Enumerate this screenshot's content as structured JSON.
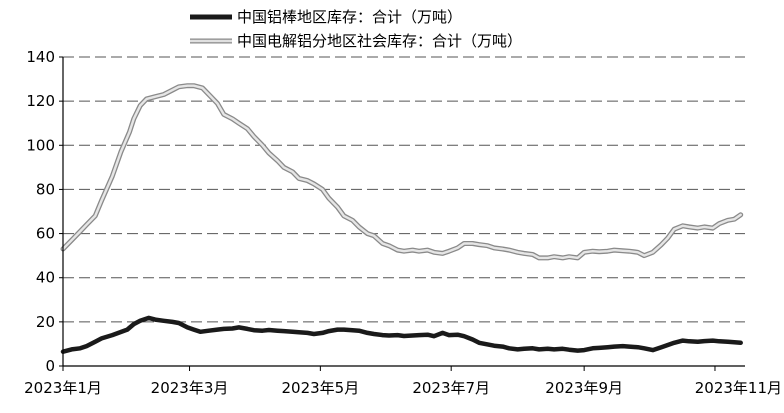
{
  "chart_data": {
    "type": "line",
    "title": "",
    "xlabel": "",
    "ylabel": "",
    "ylim": [
      0,
      140
    ],
    "yticks": [
      0,
      20,
      40,
      60,
      80,
      100,
      120,
      140
    ],
    "xlim": [
      "2023-01-01",
      "2023-11-15"
    ],
    "xticks": [
      {
        "date": "2023-01-01",
        "label": "2023年1月"
      },
      {
        "date": "2023-03-01",
        "label": "2023年3月"
      },
      {
        "date": "2023-05-01",
        "label": "2023年5月"
      },
      {
        "date": "2023-07-01",
        "label": "2023年7月"
      },
      {
        "date": "2023-09-01",
        "label": "2023年9月"
      },
      {
        "date": "2023-11-01",
        "label": "2023年11月"
      }
    ],
    "grid": "horizontal-dashed",
    "legend_position": "top-center",
    "series": [
      {
        "name": "中国铝棒地区库存：合计（万吨）",
        "color": "#1a1a1a",
        "style": "solid",
        "points": [
          [
            "2023-01-01",
            6.5
          ],
          [
            "2023-01-05",
            7.5
          ],
          [
            "2023-01-09",
            8.0
          ],
          [
            "2023-01-12",
            9.0
          ],
          [
            "2023-01-16",
            11.0
          ],
          [
            "2023-01-19",
            12.5
          ],
          [
            "2023-01-24",
            14.0
          ],
          [
            "2023-01-31",
            16.5
          ],
          [
            "2023-02-03",
            19.0
          ],
          [
            "2023-02-06",
            20.5
          ],
          [
            "2023-02-10",
            21.8
          ],
          [
            "2023-02-13",
            21.0
          ],
          [
            "2023-02-17",
            20.5
          ],
          [
            "2023-02-21",
            20.0
          ],
          [
            "2023-02-24",
            19.5
          ],
          [
            "2023-02-28",
            17.5
          ],
          [
            "2023-03-03",
            16.5
          ],
          [
            "2023-03-06",
            15.5
          ],
          [
            "2023-03-10",
            16.0
          ],
          [
            "2023-03-14",
            16.5
          ],
          [
            "2023-03-17",
            16.8
          ],
          [
            "2023-03-21",
            17.0
          ],
          [
            "2023-03-24",
            17.5
          ],
          [
            "2023-03-28",
            16.8
          ],
          [
            "2023-03-31",
            16.2
          ],
          [
            "2023-04-04",
            16.0
          ],
          [
            "2023-04-07",
            16.3
          ],
          [
            "2023-04-11",
            16.0
          ],
          [
            "2023-04-14",
            15.8
          ],
          [
            "2023-04-18",
            15.5
          ],
          [
            "2023-04-21",
            15.3
          ],
          [
            "2023-04-25",
            15.0
          ],
          [
            "2023-04-28",
            14.5
          ],
          [
            "2023-05-02",
            15.0
          ],
          [
            "2023-05-05",
            15.8
          ],
          [
            "2023-05-09",
            16.5
          ],
          [
            "2023-05-12",
            16.5
          ],
          [
            "2023-05-16",
            16.2
          ],
          [
            "2023-05-19",
            16.0
          ],
          [
            "2023-05-23",
            15.0
          ],
          [
            "2023-05-26",
            14.5
          ],
          [
            "2023-05-30",
            14.0
          ],
          [
            "2023-06-02",
            13.8
          ],
          [
            "2023-06-06",
            14.0
          ],
          [
            "2023-06-09",
            13.6
          ],
          [
            "2023-06-13",
            13.8
          ],
          [
            "2023-06-16",
            14.0
          ],
          [
            "2023-06-20",
            14.2
          ],
          [
            "2023-06-23",
            13.5
          ],
          [
            "2023-06-27",
            15.0
          ],
          [
            "2023-06-30",
            14.0
          ],
          [
            "2023-07-04",
            14.2
          ],
          [
            "2023-07-07",
            13.5
          ],
          [
            "2023-07-11",
            12.0
          ],
          [
            "2023-07-14",
            10.5
          ],
          [
            "2023-07-18",
            9.8
          ],
          [
            "2023-07-21",
            9.2
          ],
          [
            "2023-07-25",
            8.8
          ],
          [
            "2023-07-28",
            8.0
          ],
          [
            "2023-08-01",
            7.5
          ],
          [
            "2023-08-04",
            7.8
          ],
          [
            "2023-08-08",
            8.0
          ],
          [
            "2023-08-11",
            7.5
          ],
          [
            "2023-08-15",
            7.8
          ],
          [
            "2023-08-18",
            7.5
          ],
          [
            "2023-08-22",
            7.8
          ],
          [
            "2023-08-25",
            7.4
          ],
          [
            "2023-08-29",
            7.0
          ],
          [
            "2023-09-01",
            7.2
          ],
          [
            "2023-09-05",
            8.0
          ],
          [
            "2023-09-08",
            8.2
          ],
          [
            "2023-09-12",
            8.5
          ],
          [
            "2023-09-15",
            8.8
          ],
          [
            "2023-09-19",
            9.0
          ],
          [
            "2023-09-22",
            8.8
          ],
          [
            "2023-09-26",
            8.5
          ],
          [
            "2023-09-29",
            8.0
          ],
          [
            "2023-10-03",
            7.2
          ],
          [
            "2023-10-07",
            8.5
          ],
          [
            "2023-10-10",
            9.5
          ],
          [
            "2023-10-13",
            10.5
          ],
          [
            "2023-10-17",
            11.5
          ],
          [
            "2023-10-20",
            11.2
          ],
          [
            "2023-10-24",
            11.0
          ],
          [
            "2023-10-27",
            11.3
          ],
          [
            "2023-10-31",
            11.5
          ],
          [
            "2023-11-03",
            11.2
          ],
          [
            "2023-11-07",
            11.0
          ],
          [
            "2023-11-10",
            10.8
          ],
          [
            "2023-11-13",
            10.5
          ]
        ]
      },
      {
        "name": "中国电解铝分地区社会库存：合计（万吨）",
        "color": "#c0c0c0",
        "style": "double",
        "points": [
          [
            "2023-01-01",
            53.0
          ],
          [
            "2023-01-05",
            57.0
          ],
          [
            "2023-01-09",
            61.0
          ],
          [
            "2023-01-12",
            64.0
          ],
          [
            "2023-01-16",
            68.0
          ],
          [
            "2023-01-19",
            75.0
          ],
          [
            "2023-01-24",
            86.0
          ],
          [
            "2023-01-28",
            97.0
          ],
          [
            "2023-02-01",
            106.0
          ],
          [
            "2023-02-03",
            112.0
          ],
          [
            "2023-02-06",
            118.0
          ],
          [
            "2023-02-09",
            121.0
          ],
          [
            "2023-02-13",
            122.0
          ],
          [
            "2023-02-17",
            123.0
          ],
          [
            "2023-02-21",
            125.0
          ],
          [
            "2023-02-24",
            126.5
          ],
          [
            "2023-02-28",
            127.0
          ],
          [
            "2023-03-03",
            127.0
          ],
          [
            "2023-03-07",
            126.0
          ],
          [
            "2023-03-10",
            123.0
          ],
          [
            "2023-03-14",
            119.0
          ],
          [
            "2023-03-17",
            114.0
          ],
          [
            "2023-03-21",
            112.0
          ],
          [
            "2023-03-24",
            110.0
          ],
          [
            "2023-03-28",
            107.5
          ],
          [
            "2023-03-31",
            104.0
          ],
          [
            "2023-04-04",
            100.0
          ],
          [
            "2023-04-07",
            96.5
          ],
          [
            "2023-04-11",
            93.0
          ],
          [
            "2023-04-14",
            90.0
          ],
          [
            "2023-04-18",
            88.0
          ],
          [
            "2023-04-21",
            85.0
          ],
          [
            "2023-04-25",
            84.0
          ],
          [
            "2023-04-28",
            82.5
          ],
          [
            "2023-05-02",
            80.0
          ],
          [
            "2023-05-05",
            76.0
          ],
          [
            "2023-05-09",
            72.0
          ],
          [
            "2023-05-12",
            68.0
          ],
          [
            "2023-05-16",
            66.0
          ],
          [
            "2023-05-19",
            63.0
          ],
          [
            "2023-05-23",
            60.0
          ],
          [
            "2023-05-26",
            59.0
          ],
          [
            "2023-05-30",
            55.5
          ],
          [
            "2023-06-02",
            54.5
          ],
          [
            "2023-06-06",
            52.5
          ],
          [
            "2023-06-09",
            52.0
          ],
          [
            "2023-06-13",
            52.5
          ],
          [
            "2023-06-16",
            52.0
          ],
          [
            "2023-06-20",
            52.5
          ],
          [
            "2023-06-23",
            51.5
          ],
          [
            "2023-06-27",
            51.0
          ],
          [
            "2023-06-30",
            52.0
          ],
          [
            "2023-07-04",
            53.5
          ],
          [
            "2023-07-07",
            55.5
          ],
          [
            "2023-07-11",
            55.5
          ],
          [
            "2023-07-14",
            55.0
          ],
          [
            "2023-07-18",
            54.5
          ],
          [
            "2023-07-21",
            53.5
          ],
          [
            "2023-07-25",
            53.0
          ],
          [
            "2023-07-28",
            52.5
          ],
          [
            "2023-08-01",
            51.5
          ],
          [
            "2023-08-04",
            51.0
          ],
          [
            "2023-08-08",
            50.5
          ],
          [
            "2023-08-11",
            49.0
          ],
          [
            "2023-08-15",
            49.0
          ],
          [
            "2023-08-18",
            49.5
          ],
          [
            "2023-08-22",
            49.0
          ],
          [
            "2023-08-25",
            49.5
          ],
          [
            "2023-08-29",
            49.0
          ],
          [
            "2023-09-01",
            51.5
          ],
          [
            "2023-09-05",
            52.0
          ],
          [
            "2023-09-08",
            51.8
          ],
          [
            "2023-09-12",
            52.0
          ],
          [
            "2023-09-15",
            52.5
          ],
          [
            "2023-09-19",
            52.2
          ],
          [
            "2023-09-22",
            52.0
          ],
          [
            "2023-09-26",
            51.5
          ],
          [
            "2023-09-29",
            50.0
          ],
          [
            "2023-10-03",
            51.5
          ],
          [
            "2023-10-07",
            55.0
          ],
          [
            "2023-10-10",
            58.0
          ],
          [
            "2023-10-13",
            62.0
          ],
          [
            "2023-10-17",
            63.5
          ],
          [
            "2023-10-20",
            63.0
          ],
          [
            "2023-10-24",
            62.5
          ],
          [
            "2023-10-27",
            63.0
          ],
          [
            "2023-10-31",
            62.5
          ],
          [
            "2023-11-03",
            64.5
          ],
          [
            "2023-11-07",
            66.0
          ],
          [
            "2023-11-10",
            66.5
          ],
          [
            "2023-11-13",
            68.5
          ]
        ]
      }
    ]
  }
}
